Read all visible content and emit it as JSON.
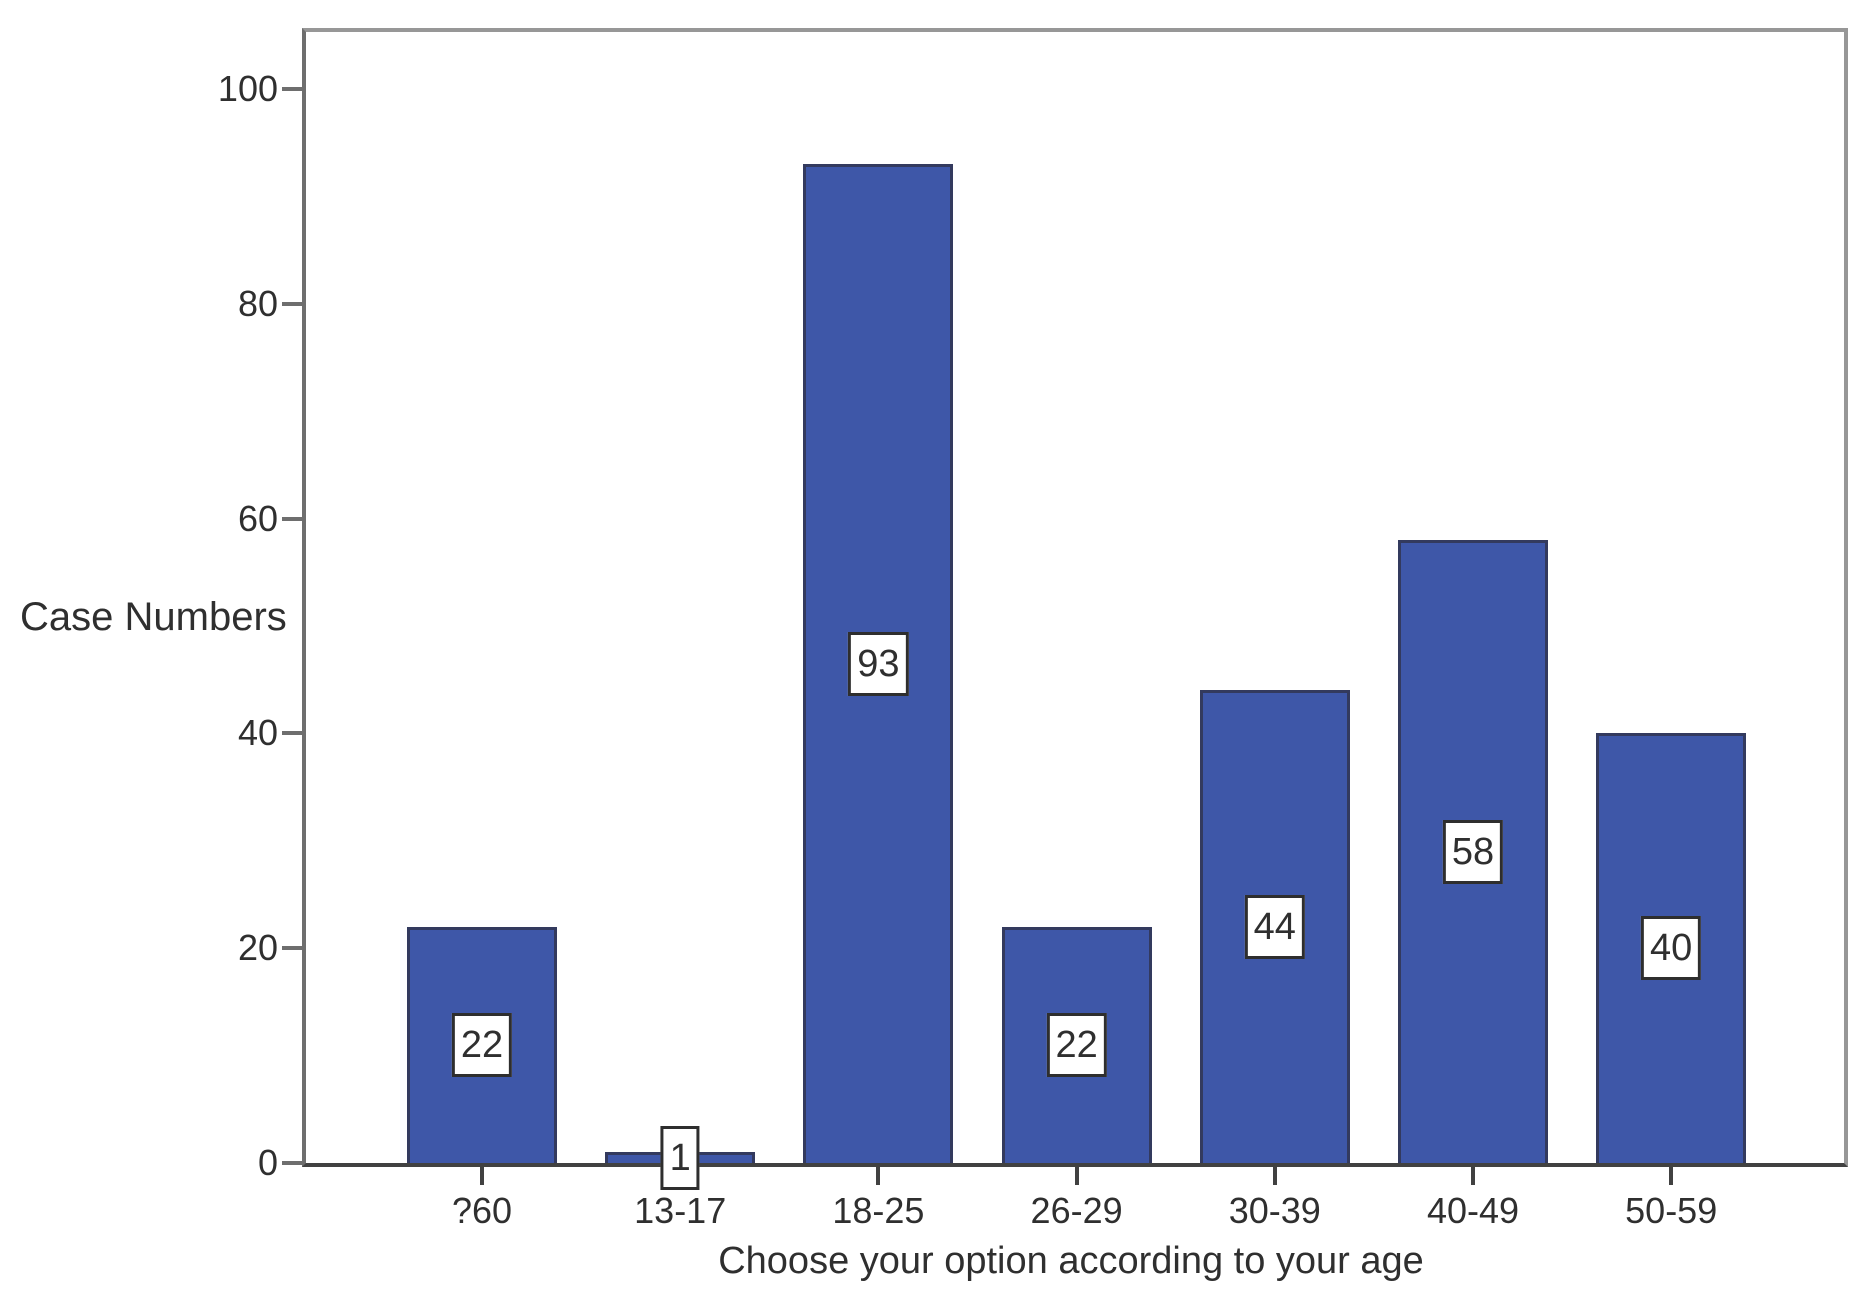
{
  "chart_data": {
    "type": "bar",
    "title": "",
    "xlabel": "Choose your option according to your age",
    "ylabel": "Case Numbers",
    "categories": [
      "?60",
      "13-17",
      "18-25",
      "26-29",
      "30-39",
      "40-49",
      "50-59"
    ],
    "values": [
      22,
      1,
      93,
      22,
      44,
      58,
      40
    ],
    "yticks": [
      0,
      20,
      40,
      60,
      80,
      100
    ],
    "ylim": [
      0,
      105
    ],
    "grid": false,
    "legend": null,
    "data_labels_shown": true,
    "colors": {
      "bar_fill": "#3E57A8",
      "bar_border": "#333A5E",
      "frame": "#979797",
      "axis_x": "#414141",
      "axis_y": "#6E6E6E",
      "text": "#2F2F2F",
      "value_box_bg": "#FFFFFF",
      "value_box_border": "#2E2E2E"
    }
  }
}
